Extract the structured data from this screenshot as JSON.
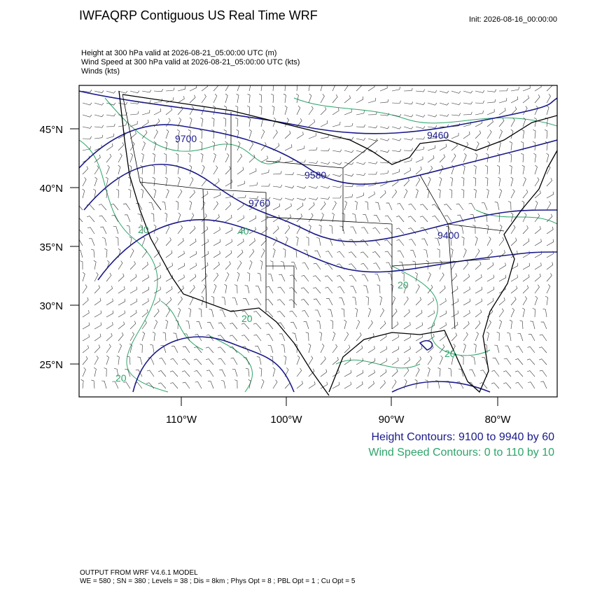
{
  "header": {
    "title": "IWFAQRP Contiguous US Real Time WRF",
    "init": "Init: 2026-08-16_00:00:00",
    "fields": [
      "Height at 300 hPa valid at 2026-08-21_05:00:00 UTC   (m)",
      "Wind Speed at 300 hPa valid at 2026-08-21_05:00:00 UTC   (kts)",
      "Winds   (kts)"
    ]
  },
  "map": {
    "lat_labels": [
      "45°N",
      "40°N",
      "35°N",
      "30°N",
      "25°N"
    ],
    "lon_labels": [
      "110°W",
      "100°W",
      "90°W",
      "80°W"
    ],
    "height_contour_labels": [
      "9700",
      "9580",
      "9460",
      "9760",
      "9400"
    ],
    "wind_contour_labels": [
      "40",
      "20",
      "20",
      "20",
      "20",
      "20"
    ]
  },
  "legend": {
    "height": "Height Contours: 9100 to 9940 by 60",
    "wind": "Wind Speed Contours: 0 to 110 by 10"
  },
  "footer": {
    "model": "OUTPUT FROM WRF V4.6.1 MODEL",
    "config": "WE = 580 ; SN = 380 ; Levels = 38 ; Dis = 8km ; Phys Opt = 8 ; PBL Opt = 1 ; Cu Opt = 5"
  }
}
